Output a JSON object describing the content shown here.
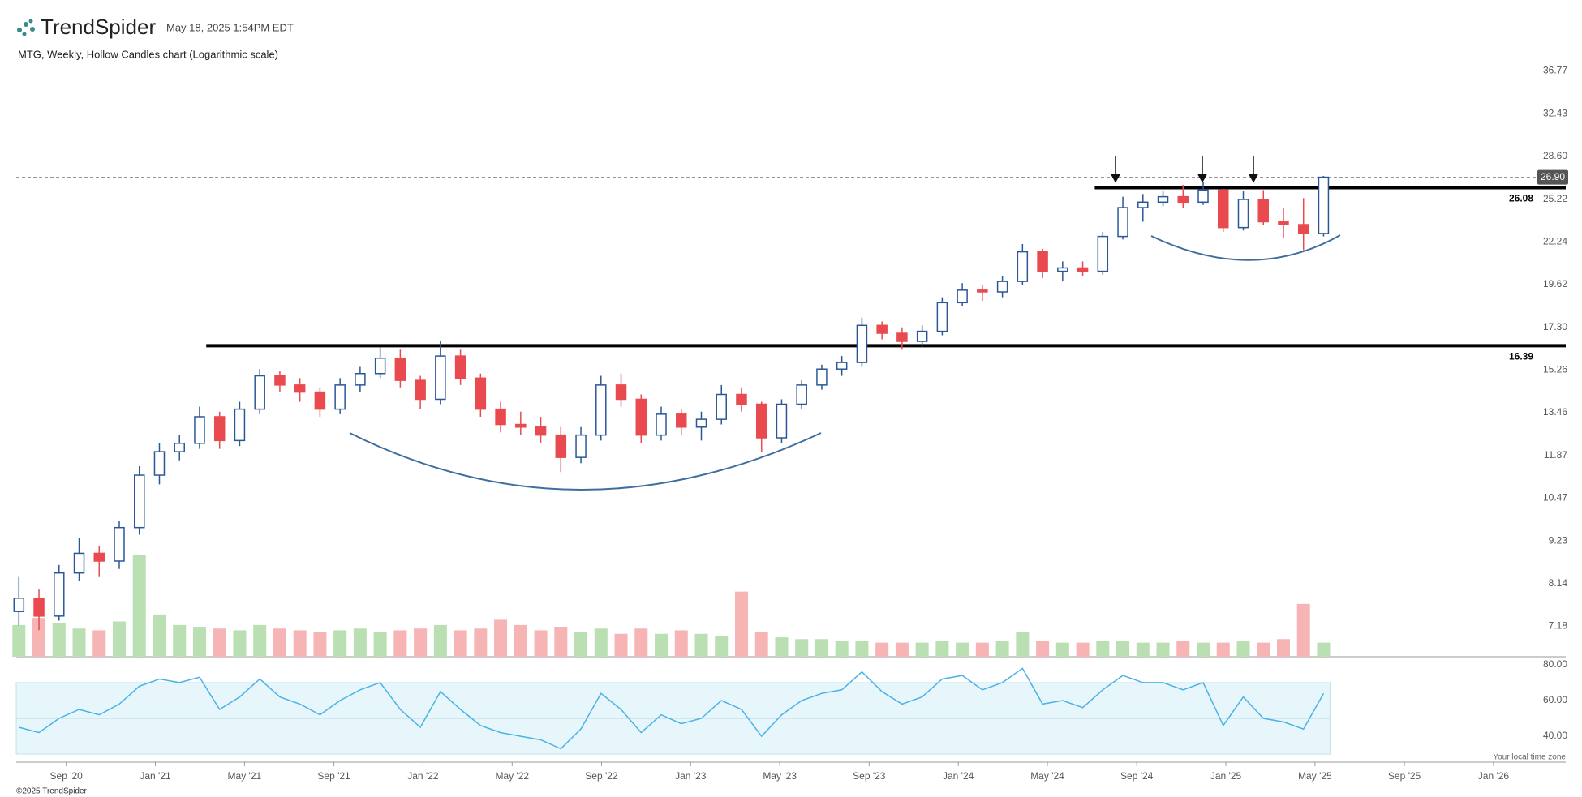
{
  "header": {
    "logo": "TrendSpider",
    "timestamp": "May 18, 2025 1:54PM EDT",
    "timezone_note": "Your local time zone",
    "footer": "©2025 TrendSpider"
  },
  "chart_data": {
    "type": "candlestick",
    "title": "MTG, Weekly, Hollow Candles chart (Logarithmic scale)",
    "log_scale": true,
    "up_color": "#2b5797",
    "down_color": "#e84a4f",
    "volume_up_color": "#b9dfb3",
    "volume_down_color": "#f6b4b4",
    "xlim": [
      2020.48,
      2026.27
    ],
    "xticks": [
      {
        "value": 2020.667,
        "label": "Sep '20"
      },
      {
        "value": 2021.0,
        "label": "Jan '21"
      },
      {
        "value": 2021.333,
        "label": "May '21"
      },
      {
        "value": 2021.667,
        "label": "Sep '21"
      },
      {
        "value": 2022.0,
        "label": "Jan '22"
      },
      {
        "value": 2022.333,
        "label": "May '22"
      },
      {
        "value": 2022.667,
        "label": "Sep '22"
      },
      {
        "value": 2023.0,
        "label": "Jan '23"
      },
      {
        "value": 2023.333,
        "label": "May '23"
      },
      {
        "value": 2023.667,
        "label": "Sep '23"
      },
      {
        "value": 2024.0,
        "label": "Jan '24"
      },
      {
        "value": 2024.333,
        "label": "May '24"
      },
      {
        "value": 2024.667,
        "label": "Sep '24"
      },
      {
        "value": 2025.0,
        "label": "Jan '25"
      },
      {
        "value": 2025.333,
        "label": "May '25"
      },
      {
        "value": 2025.667,
        "label": "Sep '25"
      },
      {
        "value": 2026.0,
        "label": "Jan '26"
      }
    ],
    "ylim": [
      7.18,
      36.77
    ],
    "yticks": [
      7.18,
      8.14,
      9.23,
      10.47,
      11.87,
      13.46,
      15.26,
      {
        "value": 17.3,
        "label": "17.30"
      },
      19.62,
      22.24,
      25.22,
      {
        "value": 28.6,
        "label": "28.60"
      },
      32.43,
      36.77
    ],
    "last_price": {
      "value": 26.9,
      "label": "26.90"
    },
    "levels": [
      {
        "value": 26.08,
        "start": 2024.51
      },
      {
        "value": 16.39,
        "start": 2021.19
      }
    ],
    "x": [
      2020.49,
      2020.565,
      2020.64,
      2020.715,
      2020.79,
      2020.865,
      2020.94,
      2021.015,
      2021.09,
      2021.165,
      2021.24,
      2021.315,
      2021.39,
      2021.465,
      2021.54,
      2021.615,
      2021.69,
      2021.765,
      2021.84,
      2021.915,
      2021.99,
      2022.065,
      2022.14,
      2022.215,
      2022.29,
      2022.365,
      2022.44,
      2022.515,
      2022.59,
      2022.665,
      2022.74,
      2022.815,
      2022.89,
      2022.965,
      2023.04,
      2023.115,
      2023.19,
      2023.265,
      2023.34,
      2023.415,
      2023.49,
      2023.565,
      2023.64,
      2023.715,
      2023.79,
      2023.865,
      2023.94,
      2024.015,
      2024.09,
      2024.165,
      2024.24,
      2024.315,
      2024.39,
      2024.465,
      2024.54,
      2024.615,
      2024.69,
      2024.765,
      2024.84,
      2024.915,
      2024.99,
      2025.065,
      2025.14,
      2025.215,
      2025.29,
      2025.365
    ],
    "open": [
      7.5,
      7.8,
      7.4,
      8.4,
      8.9,
      8.7,
      9.6,
      11.2,
      12.0,
      12.3,
      13.3,
      12.4,
      13.6,
      15.0,
      14.6,
      14.3,
      13.6,
      14.6,
      15.1,
      15.8,
      14.8,
      14.0,
      15.9,
      14.9,
      13.6,
      13.0,
      12.9,
      12.6,
      11.8,
      12.6,
      14.6,
      14.0,
      12.6,
      13.4,
      12.9,
      13.2,
      14.2,
      13.8,
      12.5,
      13.8,
      14.6,
      15.3,
      15.6,
      17.4,
      17.0,
      16.6,
      17.1,
      18.6,
      19.3,
      19.2,
      19.8,
      21.6,
      20.4,
      20.6,
      20.4,
      22.6,
      24.6,
      25.0,
      25.4,
      25.0,
      25.9,
      23.2,
      25.2,
      23.6,
      23.4,
      22.8
    ],
    "high": [
      8.3,
      8.0,
      8.6,
      9.3,
      9.1,
      9.8,
      11.5,
      12.3,
      12.6,
      13.7,
      13.5,
      13.9,
      15.3,
      15.2,
      14.9,
      14.5,
      14.9,
      15.4,
      16.3,
      16.2,
      15.0,
      16.6,
      16.2,
      15.1,
      13.9,
      13.5,
      13.3,
      12.9,
      12.9,
      15.0,
      15.1,
      14.2,
      13.7,
      13.6,
      13.5,
      14.6,
      14.5,
      13.9,
      14.0,
      14.8,
      15.5,
      15.9,
      17.8,
      17.6,
      17.3,
      17.4,
      18.9,
      19.7,
      19.6,
      20.1,
      22.1,
      21.8,
      21.0,
      21.0,
      22.9,
      25.4,
      25.6,
      25.8,
      26.3,
      26.5,
      26.0,
      25.8,
      25.9,
      24.6,
      25.3,
      27.0
    ],
    "low": [
      7.2,
      7.1,
      7.3,
      8.2,
      8.3,
      8.5,
      9.4,
      10.9,
      11.7,
      12.1,
      12.1,
      12.2,
      13.4,
      14.3,
      13.9,
      13.3,
      13.4,
      14.3,
      14.9,
      14.5,
      13.6,
      13.8,
      14.6,
      13.3,
      12.7,
      12.6,
      12.3,
      11.3,
      11.6,
      12.4,
      13.7,
      12.3,
      12.4,
      12.6,
      12.4,
      13.0,
      13.5,
      12.0,
      12.3,
      13.6,
      14.4,
      15.0,
      15.4,
      16.7,
      16.2,
      16.3,
      16.9,
      18.4,
      18.7,
      18.9,
      19.6,
      20.0,
      19.8,
      20.1,
      20.2,
      22.4,
      23.6,
      24.7,
      24.6,
      24.8,
      22.9,
      23.0,
      23.4,
      22.5,
      21.7,
      22.6
    ],
    "close": [
      7.8,
      7.4,
      8.4,
      8.9,
      8.7,
      9.6,
      11.2,
      12.0,
      12.3,
      13.3,
      12.4,
      13.6,
      15.0,
      14.6,
      14.3,
      13.6,
      14.6,
      15.1,
      15.8,
      14.8,
      14.0,
      15.9,
      14.9,
      13.6,
      13.0,
      12.9,
      12.6,
      11.8,
      12.6,
      14.6,
      14.0,
      12.6,
      13.4,
      12.9,
      13.2,
      14.2,
      13.8,
      12.5,
      13.8,
      14.6,
      15.3,
      15.6,
      17.4,
      17.0,
      16.6,
      17.1,
      18.6,
      19.3,
      19.2,
      19.8,
      21.6,
      20.4,
      20.6,
      20.4,
      22.6,
      24.6,
      25.0,
      25.4,
      25.0,
      25.9,
      23.2,
      25.2,
      23.6,
      23.4,
      22.8,
      26.9
    ],
    "volume": [
      1.8,
      2.2,
      1.9,
      1.6,
      1.5,
      2.0,
      5.8,
      2.4,
      1.8,
      1.7,
      1.6,
      1.5,
      1.8,
      1.6,
      1.5,
      1.4,
      1.5,
      1.6,
      1.4,
      1.5,
      1.6,
      1.8,
      1.5,
      1.6,
      2.1,
      1.8,
      1.5,
      1.7,
      1.4,
      1.6,
      1.3,
      1.6,
      1.3,
      1.5,
      1.3,
      1.2,
      3.7,
      1.4,
      1.1,
      1.0,
      1.0,
      0.9,
      0.9,
      0.8,
      0.8,
      0.8,
      0.9,
      0.8,
      0.8,
      0.9,
      1.4,
      0.9,
      0.8,
      0.8,
      0.9,
      0.9,
      0.8,
      0.8,
      0.9,
      0.8,
      0.8,
      0.9,
      0.8,
      1.0,
      3.0,
      0.8
    ],
    "rsi": {
      "color": "#4ab2e6",
      "band_color": "#e6f6fa",
      "band": [
        30,
        70
      ],
      "midline": 50,
      "ylim": [
        25.5,
        84.5
      ],
      "yticks": [
        {
          "value": 40,
          "label": "40.00"
        },
        {
          "value": 60,
          "label": "60.00"
        },
        {
          "value": 80,
          "label": "80.00"
        }
      ],
      "values": [
        45,
        42,
        50,
        55,
        52,
        58,
        68,
        72,
        70,
        73,
        55,
        62,
        72,
        62,
        58,
        52,
        60,
        66,
        70,
        55,
        45,
        65,
        55,
        46,
        42,
        40,
        38,
        33,
        44,
        64,
        55,
        42,
        52,
        47,
        50,
        60,
        55,
        40,
        52,
        60,
        64,
        66,
        76,
        65,
        58,
        62,
        72,
        74,
        66,
        70,
        78,
        58,
        60,
        56,
        66,
        74,
        70,
        70,
        66,
        70,
        46,
        62,
        50,
        48,
        44,
        64
      ]
    }
  }
}
